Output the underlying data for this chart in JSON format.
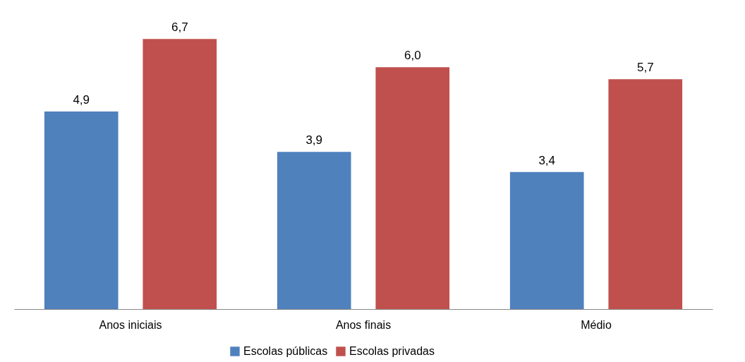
{
  "chart_data": {
    "type": "bar",
    "categories": [
      "Anos iniciais",
      "Anos finais",
      "Médio"
    ],
    "series": [
      {
        "name": "Escolas públicas",
        "color": "#4f81bd",
        "values": [
          4.9,
          3.9,
          3.4
        ],
        "value_labels": [
          "4,9",
          "3,9",
          "3,4"
        ]
      },
      {
        "name": "Escolas privadas",
        "color": "#c0504d",
        "values": [
          6.7,
          6.0,
          5.7
        ],
        "value_labels": [
          "6,7",
          "6,0",
          "5,7"
        ]
      }
    ],
    "grid": false,
    "legend": "bottom"
  }
}
